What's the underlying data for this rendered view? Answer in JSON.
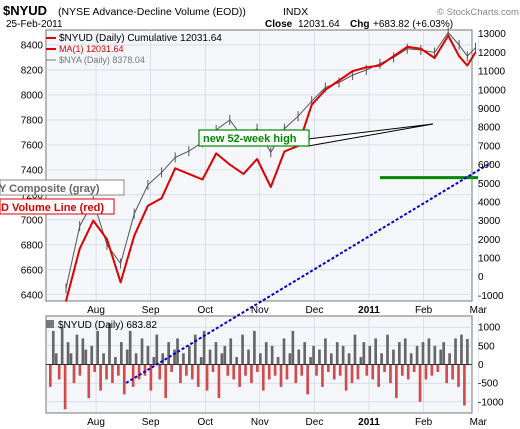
{
  "header": {
    "symbol": "$NYUD",
    "description": "(NYSE Advance-Decline Volume (EOD))",
    "index_tag": "INDX",
    "date": "25-Feb-2011",
    "close_label": "Close",
    "close_value": "12031.64",
    "chg_label": "Chg",
    "chg_value": "+683.82 (+6.03%)",
    "copyright": "© StockCharts.com"
  },
  "legend": {
    "main": "$NYUD (Daily) Cumulative 12031.64",
    "ma": "MA(1) 12031.64",
    "nya": "$NYA (Daily) 8378.04"
  },
  "annotations": {
    "high": "new 52-week high",
    "composite": "NY Composite (gray)",
    "ad_line": "AD Volume Line (red)"
  },
  "lower_panel": {
    "label": "$NYUD (Daily) 683.82"
  },
  "colors": {
    "ad_line": "#dd0000",
    "nya": "#555555",
    "volume_fill": "#666666",
    "negative_fill": "#d24a4a",
    "trend_line": "#0000cc",
    "hline": "#008800",
    "plot_bg": "#f4f6fa",
    "grid": "#c8cfe0"
  },
  "chart_data": [
    {
      "type": "line",
      "title": "$NYUD (NYSE Advance-Decline Volume (EOD))",
      "x_labels": [
        "Aug",
        "Sep",
        "Oct",
        "Nov",
        "Dec",
        "2011",
        "Feb",
        "Mar"
      ],
      "left_axis": {
        "ticks": [
          "6400",
          "6600",
          "6800",
          "7000",
          "7200",
          "7400",
          "7600",
          "7800",
          "8000",
          "8200",
          "8400"
        ],
        "ylim": [
          6350,
          8520
        ]
      },
      "right_axis": {
        "ticks": [
          "-1000",
          "0",
          "1000",
          "2000",
          "3000",
          "4000",
          "5000",
          "6000",
          "7000",
          "8000",
          "9000",
          "10000",
          "11000",
          "12000",
          "13000"
        ],
        "ylim": [
          -1300,
          13200
        ]
      },
      "series": [
        {
          "name": "$NYUD (Daily) Cumulative",
          "axis": "right",
          "months": [
            0.0,
            0.25,
            0.5,
            0.75,
            1.0,
            1.25,
            1.5,
            1.75,
            2.0,
            2.25,
            2.5,
            2.75,
            3.0,
            3.25,
            3.5,
            3.75,
            4.0,
            4.25,
            4.5,
            4.75,
            5.0,
            5.25,
            5.5,
            5.75,
            6.0,
            6.25,
            6.5,
            6.75,
            7.0,
            7.2,
            7.35,
            7.5
          ],
          "values": [
            -1300,
            1500,
            3000,
            2000,
            -300,
            2200,
            3800,
            4200,
            5800,
            5500,
            5200,
            6600,
            6000,
            5500,
            6300,
            4800,
            6700,
            7000,
            9200,
            10000,
            10500,
            11000,
            11200,
            11300,
            11800,
            12300,
            12200,
            11700,
            12900,
            11800,
            11300,
            12000
          ]
        },
        {
          "name": "$NYA (Daily)",
          "axis": "left",
          "months": [
            0.0,
            0.25,
            0.5,
            0.75,
            1.0,
            1.25,
            1.5,
            1.75,
            2.0,
            2.25,
            2.5,
            2.75,
            3.0,
            3.25,
            3.5,
            3.75,
            4.0,
            4.25,
            4.5,
            4.75,
            5.0,
            5.25,
            5.5,
            5.75,
            6.0,
            6.25,
            6.5,
            6.75,
            7.0,
            7.2,
            7.35,
            7.5
          ],
          "values": [
            6450,
            6950,
            7150,
            6800,
            6650,
            7050,
            7280,
            7380,
            7500,
            7550,
            7620,
            7720,
            7800,
            7650,
            7730,
            7540,
            7730,
            7830,
            7950,
            8060,
            8100,
            8160,
            8200,
            8250,
            8300,
            8370,
            8360,
            8340,
            8500,
            8400,
            8310,
            8378
          ]
        }
      ],
      "annotations": {
        "hline_value": 5300,
        "trend_line": {
          "from": {
            "month": 1.1,
            "value": -1300
          },
          "to": {
            "month": 7.6,
            "value": 6100
          }
        },
        "high_marker_month": 4.0
      }
    },
    {
      "type": "area",
      "title": "$NYUD (Daily) 683.82",
      "x_labels": [
        "Aug",
        "Sep",
        "Oct",
        "Nov",
        "Dec",
        "2011",
        "Feb",
        "Mar"
      ],
      "y_ticks": [
        "-1000",
        "-500",
        "0",
        "500",
        "1000"
      ],
      "ylim": [
        -1300,
        1300
      ],
      "series": [
        {
          "name": "$NYUD (Daily)",
          "values": [
            -600,
            900,
            300,
            -400,
            1000,
            -1200,
            600,
            300,
            -500,
            800,
            -300,
            700,
            400,
            -900,
            500,
            -200,
            900,
            -700,
            300,
            -400,
            1100,
            -500,
            200,
            -300,
            600,
            -800,
            400,
            900,
            -600,
            300,
            -400,
            700,
            -300,
            500,
            -700,
            200,
            800,
            -400,
            300,
            -900,
            600,
            -200,
            400,
            700,
            -500,
            300,
            -300,
            500,
            -400,
            800,
            -600,
            200,
            900,
            -700,
            400,
            -200,
            600,
            -900,
            300,
            500,
            -300,
            700,
            -400,
            200,
            -600,
            800,
            -300,
            400,
            -500,
            900,
            -200,
            300,
            -700,
            600,
            -400,
            500,
            -300,
            200,
            -600,
            700,
            -400,
            300,
            900,
            -500,
            400,
            -300,
            600,
            -800,
            200,
            500,
            -300,
            400,
            -600,
            700,
            -200,
            300,
            -400,
            600,
            -300,
            500,
            -700,
            300,
            -500,
            800,
            -400,
            200,
            600,
            -300,
            500,
            -400,
            700,
            -600,
            300,
            -200,
            800,
            -500,
            400,
            -900,
            600,
            -300,
            700,
            -400,
            300,
            -200,
            500,
            -1000,
            600,
            -400,
            700,
            -300,
            500,
            -200,
            400,
            600,
            -500,
            300,
            -400,
            700,
            -600,
            800,
            -1100,
            684
          ]
        }
      ]
    }
  ]
}
